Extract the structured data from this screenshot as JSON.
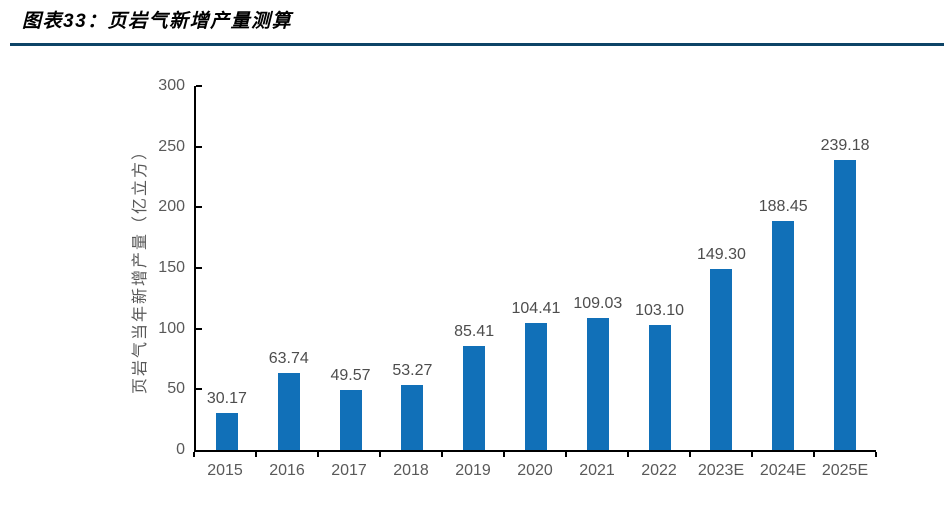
{
  "figure": {
    "title": "图表33：页岩气新增产量测算"
  },
  "chart_data": {
    "type": "bar",
    "title": "图表33：页岩气新增产量测算",
    "categories": [
      "2015",
      "2016",
      "2017",
      "2018",
      "2019",
      "2020",
      "2021",
      "2022",
      "2023E",
      "2024E",
      "2025E"
    ],
    "values": [
      30.17,
      63.74,
      49.57,
      53.27,
      85.41,
      104.41,
      109.03,
      103.1,
      149.3,
      188.45,
      239.18
    ],
    "value_labels": [
      "30.17",
      "63.74",
      "49.57",
      "53.27",
      "85.41",
      "104.41",
      "109.03",
      "103.10",
      "149.30",
      "188.45",
      "239.18"
    ],
    "xlabel": "",
    "ylabel": "页岩气当年新增产量（亿立方）",
    "ylim": [
      0,
      300
    ],
    "yticks": [
      0,
      50,
      100,
      150,
      200,
      250,
      300
    ],
    "grid": false,
    "legend": false,
    "bar_color": "#1170b8"
  },
  "colors": {
    "bar": "#1170b8",
    "title_rule": "#0d4467",
    "axis_line": "#000000",
    "tick_label": "#595959",
    "value_label": "#4d4d4d",
    "background": "#ffffff"
  }
}
